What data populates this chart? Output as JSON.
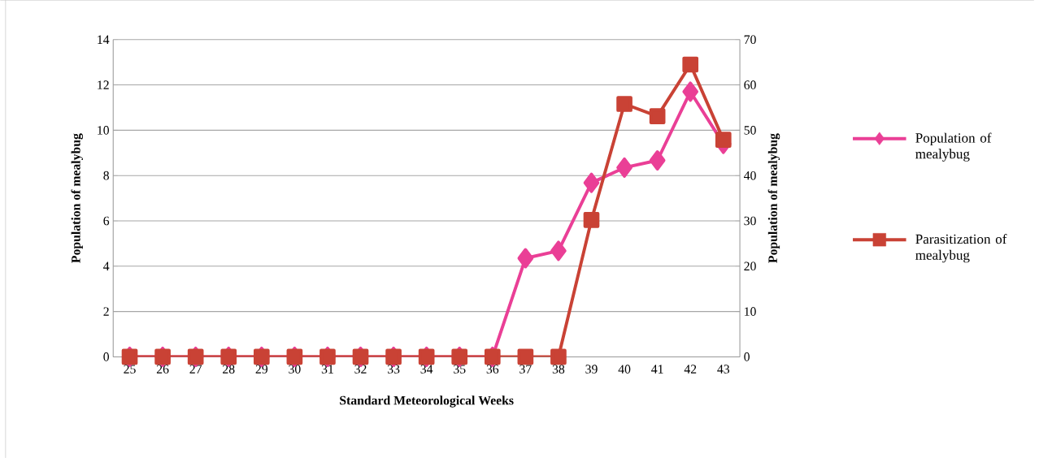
{
  "chart_data": {
    "type": "line",
    "xlabel": "Standard Meteorological Weeks",
    "ylabel": "Population of mealybug",
    "y2label": "Population of mealybug",
    "categories": [
      "25",
      "26",
      "27",
      "28",
      "29",
      "30",
      "31",
      "32",
      "33",
      "34",
      "35",
      "36",
      "37",
      "38",
      "39",
      "40",
      "41",
      "42",
      "43"
    ],
    "series": [
      {
        "name": "Population of mealybug",
        "color": "#ea3f96",
        "marker": "diamond",
        "values": [
          0,
          0,
          0,
          0,
          0,
          0,
          0,
          0,
          0,
          0,
          0,
          0,
          4.35,
          4.68,
          7.68,
          8.35,
          8.67,
          11.7,
          9.4
        ]
      },
      {
        "name": "Parasitization of mealybug",
        "color": "#c94235",
        "marker": "square",
        "axis": "y2",
        "values": [
          0,
          0,
          0,
          0,
          0,
          0,
          0,
          0,
          0,
          0,
          0,
          0,
          0,
          0,
          30.2,
          55.8,
          53.1,
          64.5,
          47.9
        ]
      }
    ],
    "ylim": [
      0,
      14
    ],
    "yticks": [
      0,
      2,
      4,
      6,
      8,
      10,
      12,
      14
    ],
    "y2lim": [
      0,
      70
    ],
    "y2ticks": [
      0,
      10,
      20,
      30,
      40,
      50,
      60,
      70
    ],
    "grid": "y",
    "legend": "right",
    "line_style": "solid"
  }
}
